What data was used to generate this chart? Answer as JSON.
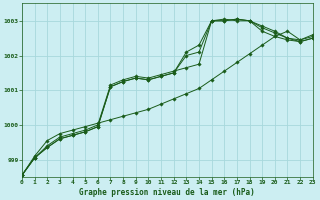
{
  "title": "Graphe pression niveau de la mer (hPa)",
  "background_color": "#cceef2",
  "grid_color": "#a8d8dc",
  "line_color": "#1a5c1a",
  "xlim": [
    0,
    23
  ],
  "ylim": [
    998.5,
    1003.5
  ],
  "yticks": [
    999,
    1000,
    1001,
    1002,
    1003
  ],
  "xticks": [
    0,
    1,
    2,
    3,
    4,
    5,
    6,
    7,
    8,
    9,
    10,
    11,
    12,
    13,
    14,
    15,
    16,
    17,
    18,
    19,
    20,
    21,
    22,
    23
  ],
  "series": [
    [
      998.55,
      999.1,
      999.55,
      999.75,
      999.85,
      999.95,
      1000.05,
      1000.15,
      1000.25,
      1000.35,
      1000.45,
      1000.6,
      1000.75,
      1000.9,
      1001.05,
      1001.3,
      1001.55,
      1001.8,
      1002.05,
      1002.3,
      1002.55,
      1002.7,
      1002.45,
      1002.6
    ],
    [
      998.55,
      999.05,
      999.4,
      999.65,
      999.75,
      999.85,
      1000.0,
      1001.15,
      1001.3,
      1001.4,
      1001.35,
      1001.45,
      1001.55,
      1001.65,
      1001.75,
      1003.0,
      1003.05,
      1003.0,
      1003.0,
      1002.85,
      1002.7,
      1002.5,
      1002.45,
      1002.55
    ],
    [
      998.55,
      999.05,
      999.35,
      999.6,
      999.7,
      999.8,
      999.95,
      1001.1,
      1001.25,
      1001.35,
      1001.3,
      1001.4,
      1001.5,
      1002.1,
      1002.3,
      1003.0,
      1003.0,
      1003.05,
      1003.0,
      1002.8,
      1002.65,
      1002.5,
      1002.4,
      1002.5
    ],
    [
      998.55,
      999.05,
      999.35,
      999.6,
      999.7,
      999.8,
      999.95,
      1001.1,
      1001.25,
      1001.35,
      1001.3,
      1001.4,
      1001.5,
      1002.0,
      1002.1,
      1003.0,
      1003.0,
      1003.05,
      1003.0,
      1002.7,
      1002.55,
      1002.45,
      1002.4,
      1002.5
    ]
  ]
}
